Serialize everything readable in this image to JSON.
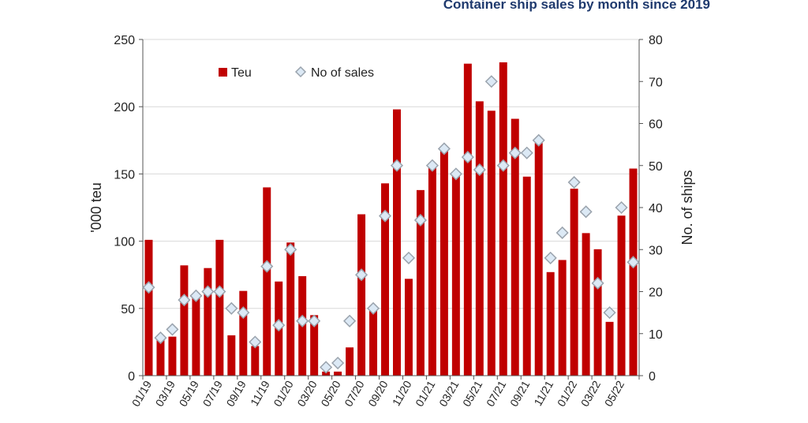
{
  "chart_data": {
    "type": "bar",
    "title": "Container ship sales by month since 2019",
    "ylabel": "'000 teu",
    "y2label": "No. of ships",
    "ylim": [
      0,
      250
    ],
    "y2lim": [
      0,
      80
    ],
    "yticks": [
      0,
      50,
      100,
      150,
      200,
      250
    ],
    "y2ticks": [
      0,
      10,
      20,
      30,
      40,
      50,
      60,
      70,
      80
    ],
    "grid": true,
    "legend_position": "top-left",
    "categories": [
      "01/19",
      "02/19",
      "03/19",
      "04/19",
      "05/19",
      "06/19",
      "07/19",
      "08/19",
      "09/19",
      "10/19",
      "11/19",
      "12/19",
      "01/20",
      "02/20",
      "03/20",
      "04/20",
      "05/20",
      "06/20",
      "07/20",
      "08/20",
      "09/20",
      "10/20",
      "11/20",
      "12/20",
      "01/21",
      "02/21",
      "03/21",
      "04/21",
      "05/21",
      "06/21",
      "07/21",
      "08/21",
      "09/21",
      "10/21",
      "11/21",
      "12/21",
      "01/22",
      "02/22",
      "03/22",
      "04/22",
      "05/22",
      "06/22"
    ],
    "series": [
      {
        "name": "Teu",
        "type": "bar",
        "axis": "left",
        "color": "#c00000",
        "values": [
          101,
          28,
          29,
          82,
          58,
          80,
          101,
          30,
          63,
          22,
          140,
          70,
          99,
          74,
          45,
          3,
          3,
          21,
          120,
          50,
          143,
          198,
          72,
          138,
          155,
          168,
          150,
          232,
          204,
          197,
          233,
          191,
          148,
          173,
          77,
          86,
          139,
          106,
          94,
          40,
          119,
          154
        ]
      },
      {
        "name": "No of sales",
        "type": "scatter",
        "axis": "right",
        "color": "#dce9f5",
        "values": [
          21,
          9,
          11,
          18,
          19,
          20,
          20,
          16,
          15,
          8,
          26,
          12,
          30,
          13,
          13,
          2,
          3,
          13,
          24,
          16,
          38,
          50,
          28,
          37,
          50,
          54,
          48,
          52,
          49,
          70,
          50,
          53,
          53,
          56,
          28,
          34,
          46,
          39,
          22,
          15,
          40,
          27
        ]
      }
    ]
  }
}
